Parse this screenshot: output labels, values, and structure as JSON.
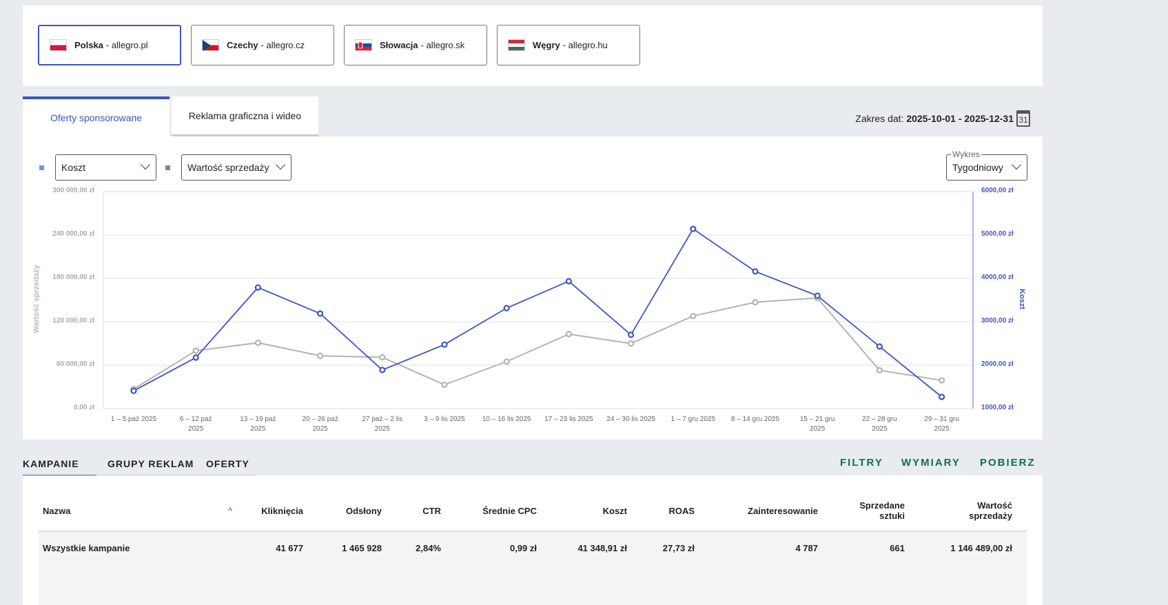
{
  "countries": [
    {
      "name": "Polska",
      "domain": " - allegro.pl",
      "active": true
    },
    {
      "name": "Czechy",
      "domain": " - allegro.cz",
      "active": false
    },
    {
      "name": "Słowacja",
      "domain": " - allegro.sk",
      "active": false
    },
    {
      "name": "Węgry",
      "domain": " - allegro.hu",
      "active": false
    }
  ],
  "tabs": [
    "Oferty sponsorowane",
    "Reklama graficzna i wideo"
  ],
  "date_range": {
    "label": "Zakres dat: ",
    "value": "2025-10-01 - 2025-12-31",
    "calendar_day": "31"
  },
  "selectors": {
    "metric1": "Koszt",
    "metric2": "Wartość sprzedaży",
    "chart_label": "Wykres",
    "chart_value": "Tygodniowy"
  },
  "colors": {
    "cost": "#3a55c8",
    "sales": "#b3b3b3",
    "accent": "#0b6e5a"
  },
  "chart_data": {
    "type": "line",
    "categories": [
      [
        "1 – 5 paź 2025"
      ],
      [
        "6 – 12 paź",
        "2025"
      ],
      [
        "13 – 19 paź",
        "2025"
      ],
      [
        "20 – 26 paź",
        "2025"
      ],
      [
        "27 paź – 2 lis",
        "2025"
      ],
      [
        "3 – 9 lis 2025"
      ],
      [
        "10 – 16 lis 2025"
      ],
      [
        "17 – 23 lis 2025"
      ],
      [
        "24 – 30 lis 2025"
      ],
      [
        "1 – 7 gru 2025"
      ],
      [
        "8 – 14 gru 2025"
      ],
      [
        "15 – 21 gru",
        "2025"
      ],
      [
        "22 – 28 gru",
        "2025"
      ],
      [
        "29 – 31 gru",
        "2025"
      ]
    ],
    "series": [
      {
        "name": "Wartość sprzedaży",
        "axis": "left",
        "values": [
          27000,
          80000,
          91000,
          73000,
          71000,
          33000,
          65000,
          103000,
          90000,
          128000,
          147000,
          153000,
          53000,
          39000
        ]
      },
      {
        "name": "Koszt",
        "axis": "right",
        "values": [
          1410,
          2175,
          3790,
          3190,
          1890,
          2475,
          3315,
          3935,
          2700,
          5140,
          4160,
          3600,
          2430,
          1270
        ]
      }
    ],
    "ylabel_left": "Wartość sprzedaży",
    "ylabel_right": "Koszt",
    "ylim_left": [
      0,
      300000
    ],
    "ylim_right": [
      1000,
      6000
    ],
    "yticks_left": [
      "0,00 zł",
      "60 000,00 zł",
      "120 000,00 zł",
      "180 000,00 zł",
      "240 000,00 zł",
      "300 000,00 zł"
    ],
    "yticks_right": [
      "1000,00 zł",
      "2000,00 zł",
      "3000,00 zł",
      "4000,00 zł",
      "5000,00 zł",
      "6000,00 zł"
    ],
    "grid": true
  },
  "bottom_tabs": [
    "KAMPANIE",
    "GRUPY REKLAM",
    "OFERTY"
  ],
  "actions": [
    "FILTRY",
    "WYMIARY",
    "POBIERZ"
  ],
  "table": {
    "headers": [
      "Nazwa",
      "Kliknięcia",
      "Odsłony",
      "CTR",
      "Średnie CPC",
      "Koszt",
      "ROAS",
      "Zainteresowanie",
      "Sprzedane sztuki",
      "Wartość sprzedaży"
    ],
    "sort_icon": "^",
    "rows": [
      [
        "Wszystkie kampanie",
        "41 677",
        "1 465 928",
        "2,84%",
        "0,99 zł",
        "41 348,91 zł",
        "27,73 zł",
        "4 787",
        "661",
        "1 146 489,00 zł"
      ]
    ]
  }
}
